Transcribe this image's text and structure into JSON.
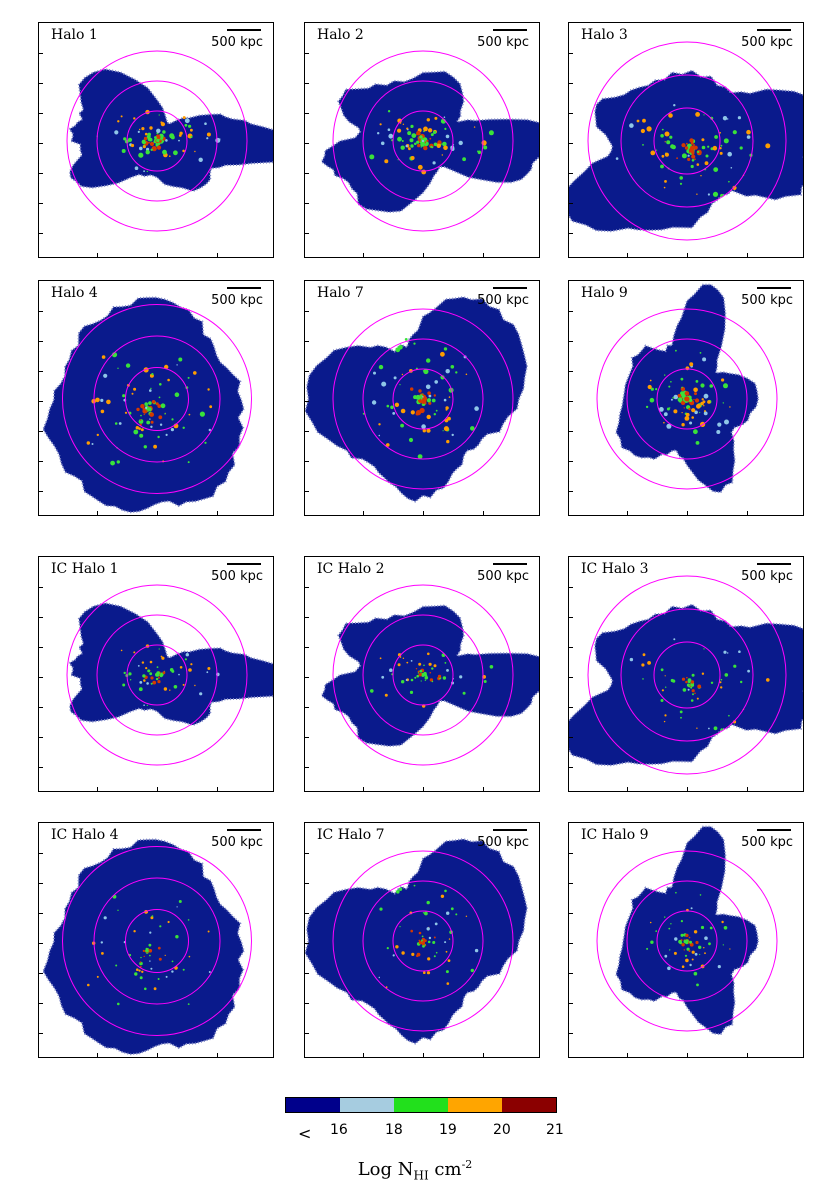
{
  "panels": [
    {
      "label": "Halo 1",
      "scale": "500 kpc"
    },
    {
      "label": "Halo 2",
      "scale": "500 kpc"
    },
    {
      "label": "Halo 3",
      "scale": "500 kpc"
    },
    {
      "label": "Halo 4",
      "scale": "500 kpc"
    },
    {
      "label": "Halo 7",
      "scale": "500 kpc"
    },
    {
      "label": "Halo 9",
      "scale": "500 kpc"
    },
    {
      "label": "IC Halo 1",
      "scale": "500 kpc"
    },
    {
      "label": "IC Halo 2",
      "scale": "500 kpc"
    },
    {
      "label": "IC Halo 3",
      "scale": "500 kpc"
    },
    {
      "label": "IC Halo 4",
      "scale": "500 kpc"
    },
    {
      "label": "IC Halo 7",
      "scale": "500 kpc"
    },
    {
      "label": "IC Halo 9",
      "scale": "500 kpc"
    }
  ],
  "colorbar": {
    "ticks": [
      "16",
      "18",
      "19",
      "20",
      "21"
    ],
    "less_than": "<",
    "colors": [
      "#00008b",
      "#a6cce0",
      "#22e01c",
      "#ffa500",
      "#8b0000"
    ],
    "title_main": "Log N",
    "title_sub": "HI",
    "title_unit": " cm",
    "title_sup": "-2"
  },
  "colors": {
    "halo_base": "#0a1a8c",
    "ring": "#ff00ff",
    "hot": "#d63a00",
    "warm": "#ff9d00",
    "green": "#39e23a",
    "cyan": "#8fc6e8"
  }
}
